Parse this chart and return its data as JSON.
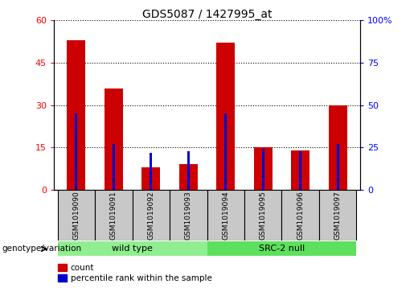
{
  "title": "GDS5087 / 1427995_at",
  "samples": [
    "GSM1019090",
    "GSM1019091",
    "GSM1019092",
    "GSM1019093",
    "GSM1019094",
    "GSM1019095",
    "GSM1019096",
    "GSM1019097"
  ],
  "counts": [
    53,
    36,
    8,
    9,
    52,
    15,
    14,
    30
  ],
  "percentile_ranks": [
    45,
    27,
    22,
    23,
    45,
    24,
    23,
    27
  ],
  "groups": [
    {
      "label": "wild type",
      "n_samples": 4,
      "color": "#90EE90"
    },
    {
      "label": "SRC-2 null",
      "n_samples": 4,
      "color": "#5DE05D"
    }
  ],
  "ylim_left": [
    0,
    60
  ],
  "ylim_right": [
    0,
    100
  ],
  "yticks_left": [
    0,
    15,
    30,
    45,
    60
  ],
  "yticks_right": [
    0,
    25,
    50,
    75,
    100
  ],
  "bar_color": "#CC0000",
  "percentile_color": "#0000CC",
  "bar_width": 0.5,
  "blue_bar_width": 0.07,
  "bg_color": "#C8C8C8",
  "plot_bg": "#FFFFFF",
  "group_label": "genotype/variation",
  "legend_count_label": "count",
  "legend_percentile_label": "percentile rank within the sample"
}
